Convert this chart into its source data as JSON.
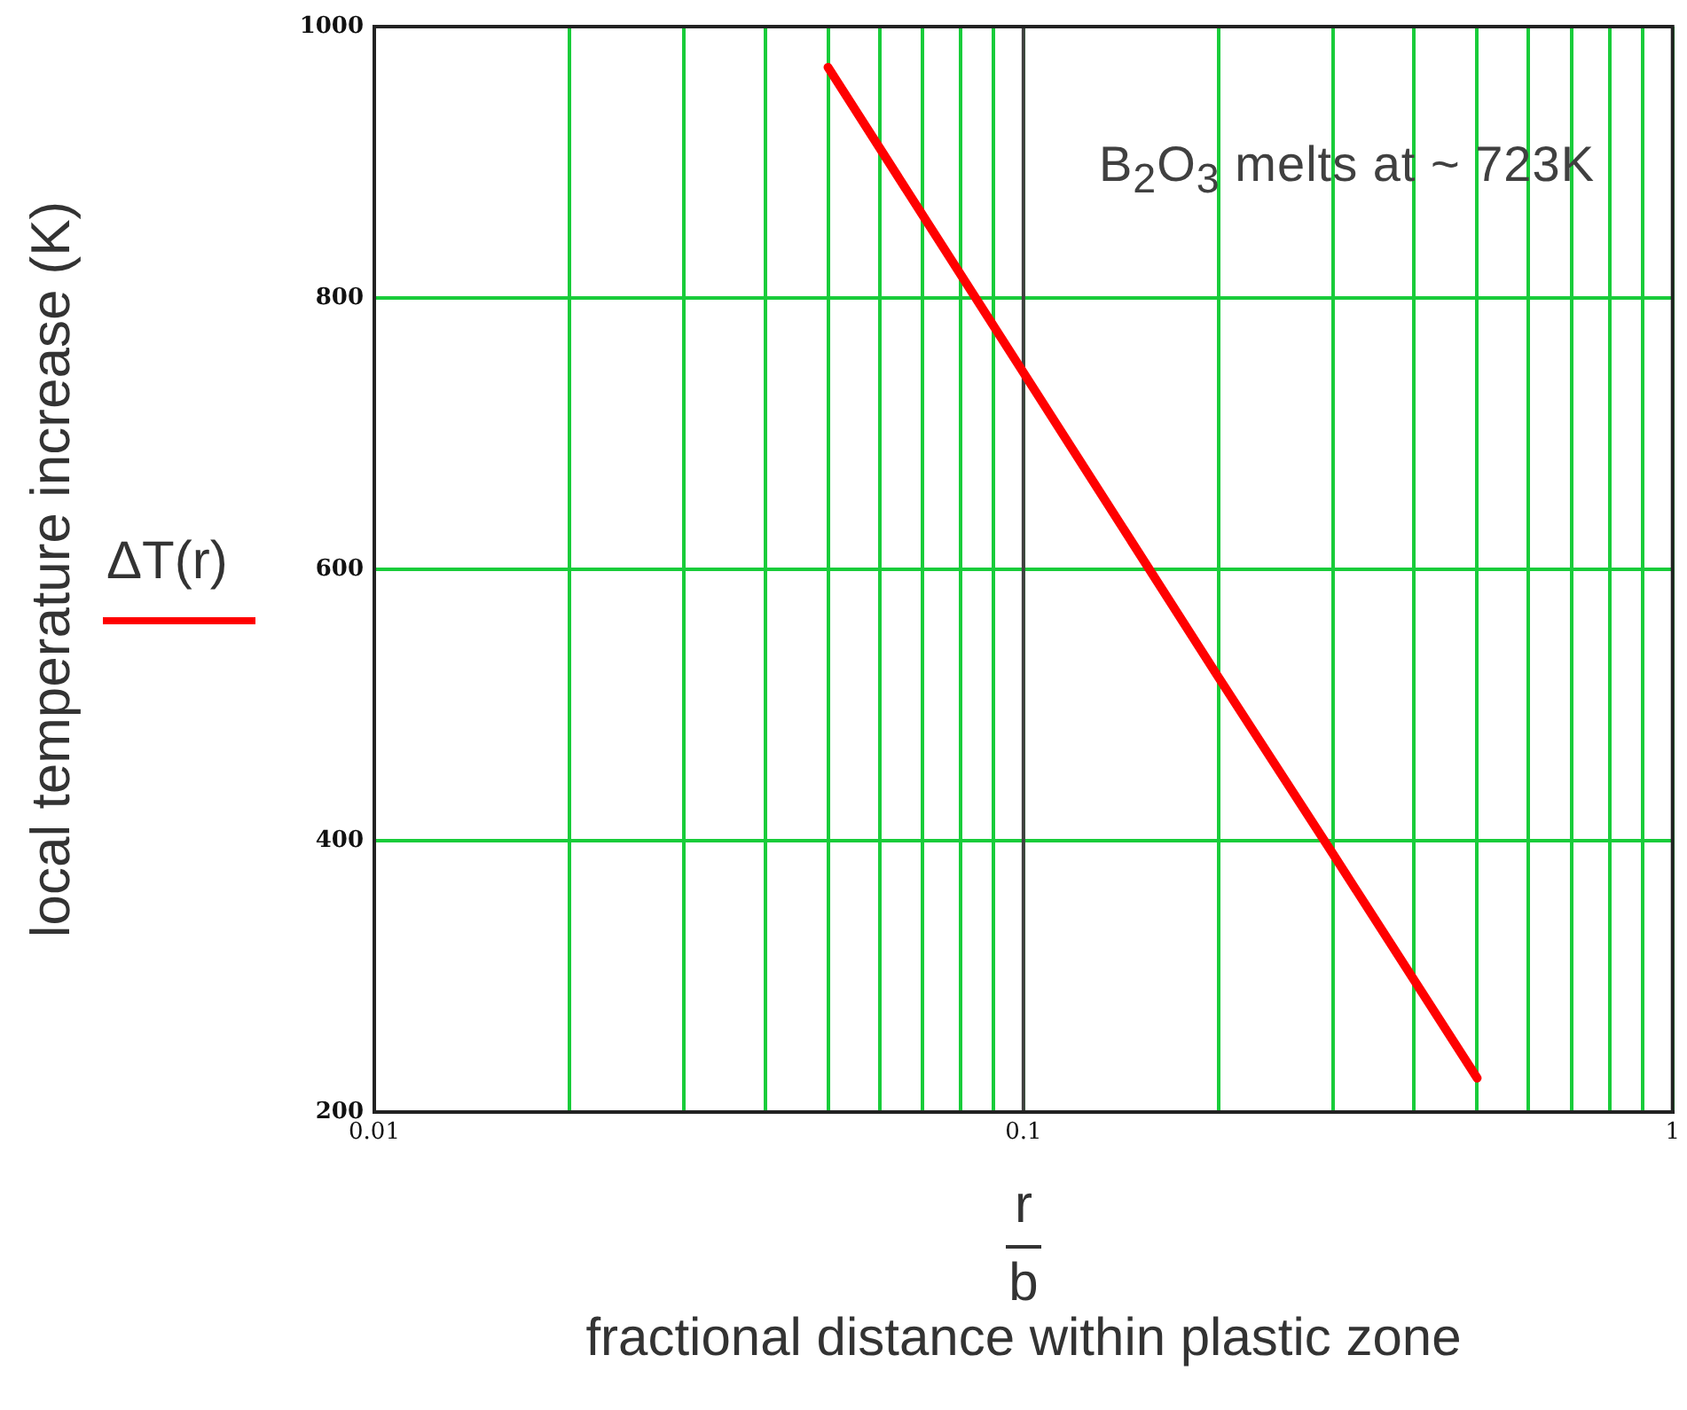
{
  "chart_data": {
    "type": "line",
    "xlabel": "r\nb\nfractional distance within plastic zone",
    "ylabel": "local temperature increase (K)",
    "annotations": [
      "B$_{2}$O$_{3}$ melts at ~ 723K"
    ],
    "x": [
      0.05,
      0.1,
      0.2,
      0.3,
      0.5
    ],
    "series": [
      {
        "name": "ΔT(r)",
        "color": "#ff0000",
        "values": [
          970,
          745,
          520,
          390,
          225
        ]
      }
    ],
    "log": "x",
    "xlim": [
      0.01,
      1
    ],
    "xticks": [
      0.01,
      {
        "value": 0.02,
        "label": null
      },
      {
        "value": 0.03,
        "label": null
      },
      {
        "value": 0.04,
        "label": null
      },
      {
        "value": 0.05,
        "label": null
      },
      {
        "value": 0.06,
        "label": null
      },
      {
        "value": 0.07,
        "label": null
      },
      {
        "value": 0.08,
        "label": null
      },
      {
        "value": 0.09,
        "label": null
      },
      0.1,
      {
        "value": 0.2,
        "label": null
      },
      {
        "value": 0.3,
        "label": null
      },
      {
        "value": 0.4,
        "label": null
      },
      {
        "value": 0.5,
        "label": null
      },
      {
        "value": 0.6,
        "label": null
      },
      {
        "value": 0.7,
        "label": null
      },
      {
        "value": 0.8,
        "label": null
      },
      {
        "value": 0.9,
        "label": null
      },
      1
    ],
    "ylim": [
      200,
      1000
    ],
    "yticks": [
      200,
      400,
      600,
      800,
      1000
    ],
    "ref_lines": [
      {
        "axis": "x",
        "value": 0.1,
        "color": "#404040"
      }
    ],
    "grid": true,
    "legend": "left",
    "marker": "none",
    "line_style": "solid"
  }
}
